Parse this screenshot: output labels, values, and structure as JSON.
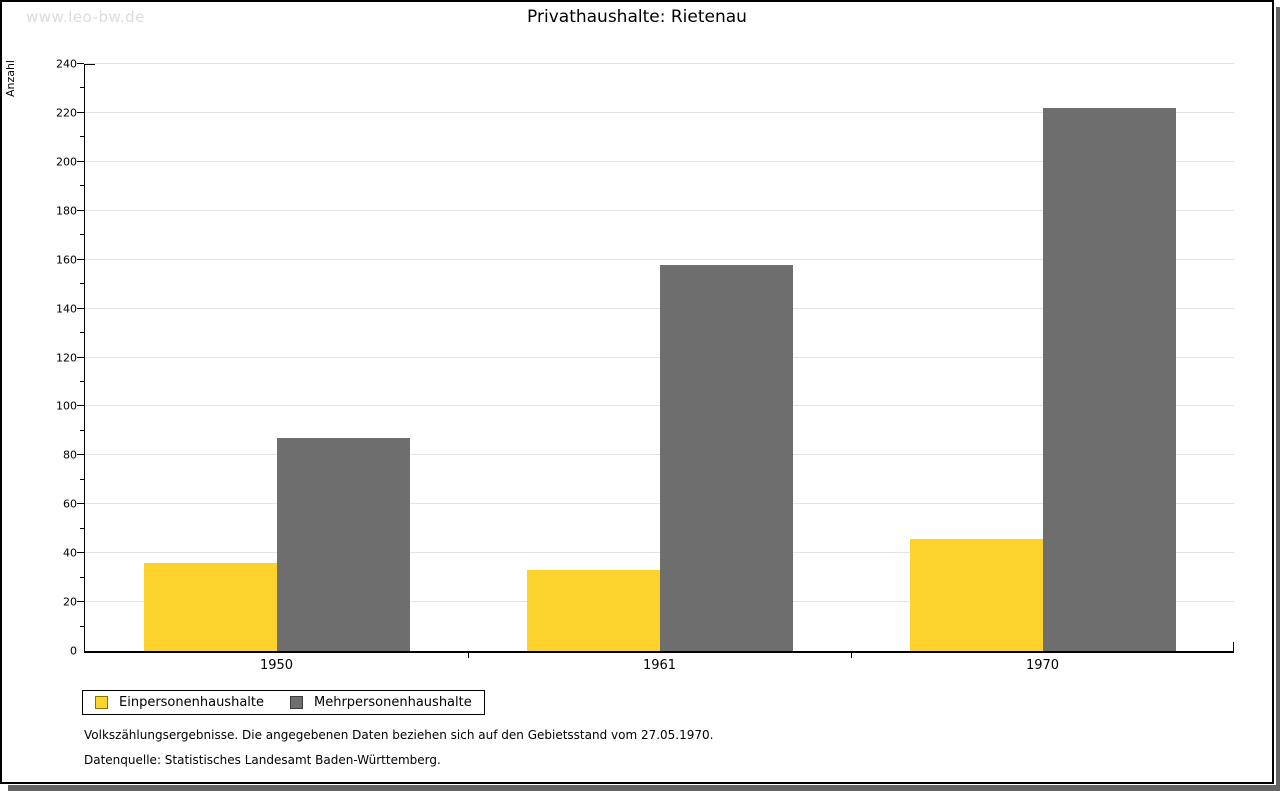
{
  "watermark": "www.leo-bw.de",
  "title": "Privathaushalte: Rietenau",
  "footnotes": {
    "line1": "Volkszählungsergebnisse. Die angegebenen Daten beziehen sich auf den Gebietsstand vom 27.05.1970.",
    "line2": "Datenquelle: Statistisches Landesamt Baden-Württemberg."
  },
  "colors": {
    "shadow": "#646464",
    "grid": "#e4e4e4",
    "axis": "#000000",
    "watermark": "#dcdcdc"
  },
  "chart_data": {
    "type": "bar",
    "title": "Privathaushalte: Rietenau",
    "ylabel": "Anzahl",
    "xlabel": "",
    "categories": [
      "1950",
      "1961",
      "1970"
    ],
    "series": [
      {
        "name": "Einpersonenhaushalte",
        "values": [
          36,
          33,
          46
        ],
        "color": "#fcd32c",
        "swatch_border": "#8a7400"
      },
      {
        "name": "Mehrpersonenhaushalte",
        "values": [
          87,
          158,
          222
        ],
        "color": "#6e6e6e",
        "swatch_border": "#3c3c3c"
      }
    ],
    "ylim": [
      0,
      240
    ],
    "ytick_step": 20,
    "minor_tick_step": 10,
    "grid": true,
    "legend_position": "bottom-left"
  }
}
